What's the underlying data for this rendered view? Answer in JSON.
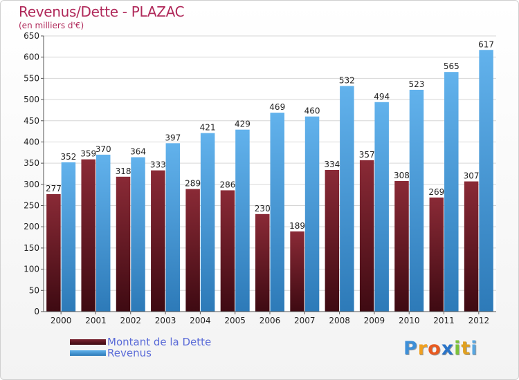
{
  "title": "Revenus/Dette - PLAZAC",
  "subtitle": "(en milliers d'€)",
  "logo": {
    "text": "Proxiti",
    "letters": [
      "P",
      "r",
      "o",
      "x",
      "i",
      "t",
      "i"
    ],
    "colors": [
      "#3d8fd8",
      "#f0a020",
      "#e85a20",
      "#2a74c8",
      "#7cc23a",
      "#e0a020",
      "#58a6e0"
    ]
  },
  "colors": {
    "debt": "#7a2330",
    "debt_dark": "#4a0e16",
    "revenue": "#5aaae6",
    "revenue_dark": "#2a78b8",
    "title": "#b0295a",
    "legend_text": "#5a6bd8"
  },
  "chart_data": {
    "type": "bar",
    "categories": [
      "2000",
      "2001",
      "2002",
      "2003",
      "2004",
      "2005",
      "2006",
      "2007",
      "2008",
      "2009",
      "2010",
      "2011",
      "2012"
    ],
    "series": [
      {
        "name": "Montant de la Dette",
        "values": [
          277,
          359,
          318,
          333,
          289,
          286,
          230,
          189,
          334,
          357,
          308,
          269,
          307
        ]
      },
      {
        "name": "Revenus",
        "values": [
          352,
          370,
          364,
          397,
          421,
          429,
          469,
          460,
          532,
          494,
          523,
          565,
          617
        ]
      }
    ],
    "ylim": [
      0,
      650
    ],
    "yticks": [
      0,
      50,
      100,
      150,
      200,
      250,
      300,
      350,
      400,
      450,
      500,
      550,
      600,
      650
    ],
    "grid": true,
    "legend": "bottom-left"
  }
}
